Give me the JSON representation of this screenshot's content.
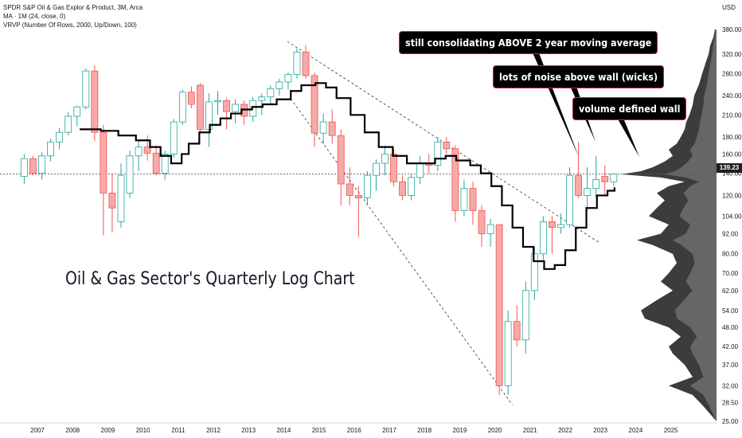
{
  "header": {
    "line1": "SPDR S&P Oil & Gas Explor & Product, 3M, Arca",
    "line2": "MA · 1M (24, close, 0)",
    "line3": "VRVP (Number Of Rows, 2000, Up/Down, 100)"
  },
  "currency": "USD",
  "current_price": "139.23",
  "title": "Oil & Gas Sector's Quarterly Log Chart",
  "annotations": [
    "still consolidating ABOVE 2 year moving average",
    "lots of noise above wall (wicks)",
    "volume defined wall"
  ],
  "colors": {
    "up": "#26a69a",
    "down": "#ef5350",
    "up_fill": "#ffffff",
    "down_fill": "#f7a9a8",
    "ma": "#000000"
  },
  "chart_data": {
    "type": "candlestick",
    "scale": "log",
    "ylim": [
      25,
      420
    ],
    "y_ticks": [
      25,
      28.5,
      32,
      37,
      42,
      48,
      54,
      62,
      70,
      80,
      92,
      104,
      120,
      140,
      160,
      180,
      210,
      240,
      280,
      320,
      380
    ],
    "y_tick_labels": [
      "25.00",
      "28.50",
      "32.00",
      "37.00",
      "42.00",
      "48.00",
      "54.00",
      "62.00",
      "70.00",
      "80.00",
      "92.00",
      "104.00",
      "120.00",
      "140.00",
      "160.00",
      "180.00",
      "210.00",
      "240.00",
      "280.00",
      "320.00",
      "380.00"
    ],
    "x_ticks": [
      "2007",
      "2008",
      "2009",
      "2010",
      "2011",
      "2012",
      "2013",
      "2014",
      "2015",
      "2016",
      "2017",
      "2018",
      "2019",
      "2020",
      "2021",
      "2022",
      "2023",
      "2024",
      "2025"
    ],
    "candles": [
      {
        "t": "2006Q3",
        "o": 137,
        "h": 160,
        "l": 130,
        "c": 155
      },
      {
        "t": "2006Q4",
        "o": 155,
        "h": 158,
        "l": 138,
        "c": 140
      },
      {
        "t": "2007Q1",
        "o": 140,
        "h": 162,
        "l": 134,
        "c": 158
      },
      {
        "t": "2007Q2",
        "o": 158,
        "h": 178,
        "l": 152,
        "c": 174
      },
      {
        "t": "2007Q3",
        "o": 174,
        "h": 192,
        "l": 165,
        "c": 186
      },
      {
        "t": "2007Q4",
        "o": 186,
        "h": 214,
        "l": 182,
        "c": 208
      },
      {
        "t": "2008Q1",
        "o": 208,
        "h": 224,
        "l": 194,
        "c": 222
      },
      {
        "t": "2008Q2",
        "o": 222,
        "h": 290,
        "l": 218,
        "c": 285
      },
      {
        "t": "2008Q3",
        "o": 285,
        "h": 296,
        "l": 175,
        "c": 186
      },
      {
        "t": "2008Q4",
        "o": 186,
        "h": 196,
        "l": 91,
        "c": 122
      },
      {
        "t": "2009Q1",
        "o": 122,
        "h": 140,
        "l": 93,
        "c": 110
      },
      {
        "t": "2009Q2",
        "o": 100,
        "h": 150,
        "l": 96,
        "c": 138
      },
      {
        "t": "2009Q3",
        "o": 122,
        "h": 164,
        "l": 118,
        "c": 158
      },
      {
        "t": "2009Q4",
        "o": 158,
        "h": 176,
        "l": 142,
        "c": 168
      },
      {
        "t": "2010Q1",
        "o": 168,
        "h": 182,
        "l": 153,
        "c": 161
      },
      {
        "t": "2010Q2",
        "o": 161,
        "h": 170,
        "l": 138,
        "c": 140
      },
      {
        "t": "2010Q3",
        "o": 140,
        "h": 164,
        "l": 134,
        "c": 160
      },
      {
        "t": "2010Q4",
        "o": 160,
        "h": 204,
        "l": 156,
        "c": 200
      },
      {
        "t": "2011Q1",
        "o": 200,
        "h": 250,
        "l": 196,
        "c": 246
      },
      {
        "t": "2011Q2",
        "o": 246,
        "h": 256,
        "l": 220,
        "c": 226
      },
      {
        "t": "2011Q3",
        "o": 258,
        "h": 262,
        "l": 186,
        "c": 190
      },
      {
        "t": "2011Q4",
        "o": 190,
        "h": 244,
        "l": 168,
        "c": 230
      },
      {
        "t": "2012Q1",
        "o": 230,
        "h": 248,
        "l": 210,
        "c": 232
      },
      {
        "t": "2012Q2",
        "o": 232,
        "h": 236,
        "l": 190,
        "c": 215
      },
      {
        "t": "2012Q3",
        "o": 215,
        "h": 234,
        "l": 198,
        "c": 226
      },
      {
        "t": "2012Q4",
        "o": 226,
        "h": 232,
        "l": 196,
        "c": 208
      },
      {
        "t": "2013Q1",
        "o": 208,
        "h": 238,
        "l": 200,
        "c": 232
      },
      {
        "t": "2013Q2",
        "o": 232,
        "h": 244,
        "l": 210,
        "c": 238
      },
      {
        "t": "2013Q3",
        "o": 238,
        "h": 258,
        "l": 226,
        "c": 252
      },
      {
        "t": "2013Q4",
        "o": 252,
        "h": 270,
        "l": 240,
        "c": 264
      },
      {
        "t": "2014Q1",
        "o": 264,
        "h": 282,
        "l": 250,
        "c": 278
      },
      {
        "t": "2014Q2",
        "o": 278,
        "h": 334,
        "l": 270,
        "c": 325
      },
      {
        "t": "2014Q3",
        "o": 325,
        "h": 340,
        "l": 270,
        "c": 276
      },
      {
        "t": "2014Q4",
        "o": 276,
        "h": 282,
        "l": 168,
        "c": 185
      },
      {
        "t": "2015Q1",
        "o": 185,
        "h": 212,
        "l": 172,
        "c": 200
      },
      {
        "t": "2015Q2",
        "o": 200,
        "h": 218,
        "l": 172,
        "c": 182
      },
      {
        "t": "2015Q3",
        "o": 182,
        "h": 190,
        "l": 112,
        "c": 130
      },
      {
        "t": "2015Q4",
        "o": 130,
        "h": 146,
        "l": 112,
        "c": 120
      },
      {
        "t": "2016Q1",
        "o": 120,
        "h": 128,
        "l": 90,
        "c": 118
      },
      {
        "t": "2016Q2",
        "o": 118,
        "h": 142,
        "l": 112,
        "c": 138
      },
      {
        "t": "2016Q3",
        "o": 138,
        "h": 154,
        "l": 124,
        "c": 150
      },
      {
        "t": "2016Q4",
        "o": 150,
        "h": 170,
        "l": 138,
        "c": 160
      },
      {
        "t": "2017Q1",
        "o": 160,
        "h": 166,
        "l": 128,
        "c": 132
      },
      {
        "t": "2017Q2",
        "o": 132,
        "h": 138,
        "l": 116,
        "c": 120
      },
      {
        "t": "2017Q3",
        "o": 120,
        "h": 140,
        "l": 116,
        "c": 136
      },
      {
        "t": "2017Q4",
        "o": 136,
        "h": 158,
        "l": 130,
        "c": 150
      },
      {
        "t": "2018Q1",
        "o": 150,
        "h": 160,
        "l": 140,
        "c": 148
      },
      {
        "t": "2018Q2",
        "o": 148,
        "h": 180,
        "l": 142,
        "c": 174
      },
      {
        "t": "2018Q3",
        "o": 174,
        "h": 180,
        "l": 160,
        "c": 166
      },
      {
        "t": "2018Q4",
        "o": 166,
        "h": 170,
        "l": 100,
        "c": 108
      },
      {
        "t": "2019Q1",
        "o": 108,
        "h": 134,
        "l": 104,
        "c": 126
      },
      {
        "t": "2019Q2",
        "o": 126,
        "h": 132,
        "l": 98,
        "c": 108
      },
      {
        "t": "2019Q3",
        "o": 108,
        "h": 112,
        "l": 84,
        "c": 92
      },
      {
        "t": "2019Q4",
        "o": 92,
        "h": 102,
        "l": 84,
        "c": 98
      },
      {
        "t": "2020Q1",
        "o": 98,
        "h": 98,
        "l": 30,
        "c": 32
      },
      {
        "t": "2020Q2",
        "o": 32,
        "h": 54,
        "l": 30,
        "c": 50
      },
      {
        "t": "2020Q3",
        "o": 50,
        "h": 56,
        "l": 42,
        "c": 44
      },
      {
        "t": "2020Q4",
        "o": 44,
        "h": 66,
        "l": 40,
        "c": 62
      },
      {
        "t": "2021Q1",
        "o": 62,
        "h": 84,
        "l": 58,
        "c": 80
      },
      {
        "t": "2021Q2",
        "o": 80,
        "h": 104,
        "l": 76,
        "c": 100
      },
      {
        "t": "2021Q3",
        "o": 100,
        "h": 104,
        "l": 80,
        "c": 96
      },
      {
        "t": "2021Q4",
        "o": 96,
        "h": 106,
        "l": 92,
        "c": 98
      },
      {
        "t": "2022Q1",
        "o": 98,
        "h": 146,
        "l": 96,
        "c": 138
      },
      {
        "t": "2022Q2",
        "o": 138,
        "h": 174,
        "l": 118,
        "c": 120
      },
      {
        "t": "2022Q3",
        "o": 120,
        "h": 146,
        "l": 108,
        "c": 126
      },
      {
        "t": "2022Q4",
        "o": 126,
        "h": 158,
        "l": 118,
        "c": 134
      },
      {
        "t": "2023Q1",
        "o": 137,
        "h": 148,
        "l": 120,
        "c": 132
      },
      {
        "t": "2023Q2",
        "o": 132,
        "h": 140,
        "l": 128,
        "c": 139.23
      }
    ],
    "moving_average": {
      "name": "MA · 1M (24, close, 0)",
      "points": [
        [
          "2008.2",
          190
        ],
        [
          "2008.8",
          188
        ],
        [
          "2009.3",
          182
        ],
        [
          "2009.8",
          176
        ],
        [
          "2010.2",
          168
        ],
        [
          "2010.5",
          158
        ],
        [
          "2010.8",
          150
        ],
        [
          "2011.1",
          160
        ],
        [
          "2011.3",
          172
        ],
        [
          "2011.6",
          186
        ],
        [
          "2011.9",
          196
        ],
        [
          "2012.2",
          205
        ],
        [
          "2012.5",
          212
        ],
        [
          "2012.8",
          218
        ],
        [
          "2013.1",
          222
        ],
        [
          "2013.4",
          226
        ],
        [
          "2013.8",
          234
        ],
        [
          "2014.2",
          248
        ],
        [
          "2014.5",
          258
        ],
        [
          "2014.9",
          262
        ],
        [
          "2015.2",
          254
        ],
        [
          "2015.5",
          236
        ],
        [
          "2015.9",
          210
        ],
        [
          "2016.3",
          186
        ],
        [
          "2016.7",
          168
        ],
        [
          "2017.1",
          158
        ],
        [
          "2017.5",
          150
        ],
        [
          "2017.9",
          150
        ],
        [
          "2018.3",
          155
        ],
        [
          "2018.6",
          158
        ],
        [
          "2018.9",
          153
        ],
        [
          "2019.3",
          148
        ],
        [
          "2019.6",
          140
        ],
        [
          "2019.9",
          128
        ],
        [
          "2020.2",
          112
        ],
        [
          "2020.5",
          96
        ],
        [
          "2020.8",
          84
        ],
        [
          "2021.1",
          76
        ],
        [
          "2021.4",
          72
        ],
        [
          "2021.7",
          74
        ],
        [
          "2022.0",
          82
        ],
        [
          "2022.3",
          96
        ],
        [
          "2022.6",
          110
        ],
        [
          "2022.9",
          120
        ],
        [
          "2023.2",
          124
        ],
        [
          "2023.4",
          127
        ]
      ]
    },
    "trendlines": [
      {
        "from": [
          "2014.1",
          350
        ],
        "to": [
          "2023.0",
          86
        ]
      },
      {
        "from": [
          "2014.2",
          235
        ],
        "to": [
          "2020.5",
          28
        ]
      }
    ],
    "hline": 139.23,
    "volume_profile": "right-side histogram (VRVP)"
  }
}
